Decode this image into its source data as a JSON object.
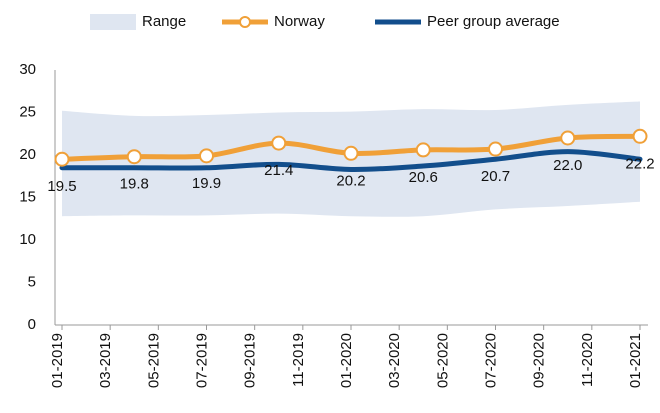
{
  "chart_data": {
    "type": "line",
    "categories": [
      "01-2019",
      null,
      "03-2019",
      null,
      "05-2019",
      null,
      "07-2019",
      null,
      "09-2019",
      null,
      "11-2019",
      null,
      "01-2020",
      null,
      "03-2020",
      null,
      "05-2020",
      null,
      "07-2020",
      null,
      "09-2020",
      null,
      "11-2020",
      null,
      "01-2021"
    ],
    "series": [
      {
        "name": "Range",
        "color": "#dfe6f1",
        "low": [
          12.8,
          null,
          null,
          12.9,
          null,
          null,
          12.9,
          null,
          null,
          13.1,
          null,
          null,
          12.8,
          null,
          null,
          12.8,
          null,
          null,
          13.6,
          null,
          null,
          14.0,
          null,
          null,
          14.5
        ],
        "high": [
          25.2,
          null,
          null,
          24.6,
          null,
          null,
          24.7,
          null,
          null,
          25.0,
          null,
          null,
          25.1,
          null,
          null,
          25.4,
          null,
          null,
          25.3,
          null,
          null,
          25.9,
          null,
          null,
          26.3
        ]
      },
      {
        "name": "Norway",
        "color": "#f0a038",
        "markers": true,
        "values": [
          19.5,
          null,
          null,
          19.8,
          null,
          null,
          19.9,
          null,
          null,
          21.4,
          null,
          null,
          20.2,
          null,
          null,
          20.6,
          null,
          null,
          20.7,
          null,
          null,
          22.0,
          null,
          null,
          22.2
        ],
        "value_labels": [
          "19.5",
          null,
          null,
          "19.8",
          null,
          null,
          "19.9",
          null,
          null,
          "21.4",
          null,
          null,
          "20.2",
          null,
          null,
          "20.6",
          null,
          null,
          "20.7",
          null,
          null,
          "22.0",
          null,
          null,
          "22.2"
        ]
      },
      {
        "name": "Peer group average",
        "color": "#124e8c",
        "values": [
          18.5,
          null,
          null,
          18.5,
          null,
          null,
          18.5,
          null,
          null,
          18.9,
          null,
          null,
          18.3,
          null,
          null,
          18.7,
          null,
          null,
          19.5,
          null,
          null,
          20.4,
          null,
          null,
          19.5
        ]
      }
    ],
    "span_gaps": true,
    "ylim": [
      0,
      30
    ],
    "yticks": [
      0,
      5,
      10,
      15,
      20,
      25,
      30
    ]
  }
}
